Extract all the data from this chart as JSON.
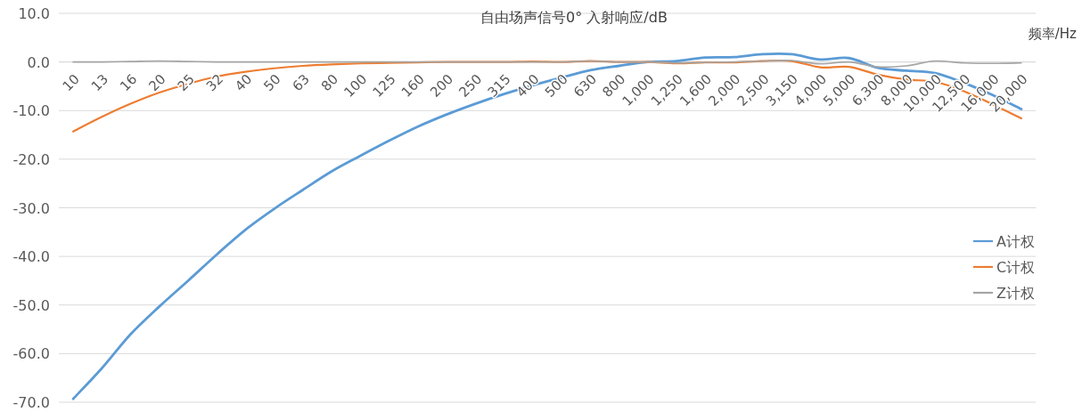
{
  "chart_data": {
    "type": "line",
    "title": "自由场声信号0° 入射响应/dB",
    "xlabel": "频率/Hz",
    "categories": [
      "10",
      "13",
      "16",
      "20",
      "25",
      "32",
      "40",
      "50",
      "63",
      "80",
      "100",
      "125",
      "160",
      "200",
      "250",
      "315",
      "400",
      "500",
      "630",
      "800",
      "1,000",
      "1,250",
      "1,600",
      "2,000",
      "2,500",
      "3,150",
      "4,000",
      "5,000",
      "6,300",
      "8,000",
      "10,000",
      "12,500",
      "16,000",
      "20,000"
    ],
    "series": [
      {
        "name": "A计权",
        "color": "#5b9bd5",
        "values": [
          -69.3,
          -63.0,
          -56.0,
          -50.3,
          -45.0,
          -39.6,
          -34.5,
          -30.2,
          -26.3,
          -22.5,
          -19.3,
          -16.2,
          -13.3,
          -10.8,
          -8.6,
          -6.6,
          -4.8,
          -3.2,
          -1.7,
          -0.8,
          0,
          0.2,
          0.9,
          1.0,
          1.6,
          1.6,
          0.5,
          0.8,
          -1.2,
          -1.8,
          -2.3,
          -4.3,
          -6.8,
          -9.7
        ]
      },
      {
        "name": "C计权",
        "color": "#ed7d31",
        "values": [
          -14.3,
          -11.3,
          -8.6,
          -6.3,
          -4.5,
          -3.0,
          -2.0,
          -1.3,
          -0.8,
          -0.5,
          -0.3,
          -0.2,
          -0.1,
          0,
          0,
          0,
          0.1,
          0,
          0.2,
          0,
          0,
          -0.3,
          -0.1,
          -0.1,
          0.2,
          0.2,
          -1.1,
          -1.0,
          -2.6,
          -3.6,
          -4.1,
          -6.0,
          -8.7,
          -11.6
        ]
      },
      {
        "name": "Z计权",
        "color": "#a5a5a5",
        "values": [
          0,
          0,
          0.1,
          0.2,
          0.1,
          0,
          0,
          0,
          0,
          0,
          0,
          0,
          0,
          0,
          0,
          0,
          0,
          0,
          0.2,
          0,
          0,
          -0.2,
          -0.1,
          0,
          0.2,
          0.3,
          -0.4,
          0,
          -1.0,
          -0.8,
          0.2,
          -0.2,
          -0.3,
          -0.2
        ]
      }
    ],
    "ylim": [
      -70,
      10
    ],
    "yticks": [
      {
        "value": -70,
        "label": "-70.0"
      },
      {
        "value": -60,
        "label": "-60.0"
      },
      {
        "value": -50,
        "label": "-50.0"
      },
      {
        "value": -40,
        "label": "-40.0"
      },
      {
        "value": -30,
        "label": "-30.0"
      },
      {
        "value": -20,
        "label": "-20.0"
      },
      {
        "value": -10,
        "label": "-10.0"
      },
      {
        "value": 0,
        "label": "0.0"
      },
      {
        "value": 10,
        "label": "10.0"
      }
    ],
    "grid": "y",
    "legend": "right"
  }
}
